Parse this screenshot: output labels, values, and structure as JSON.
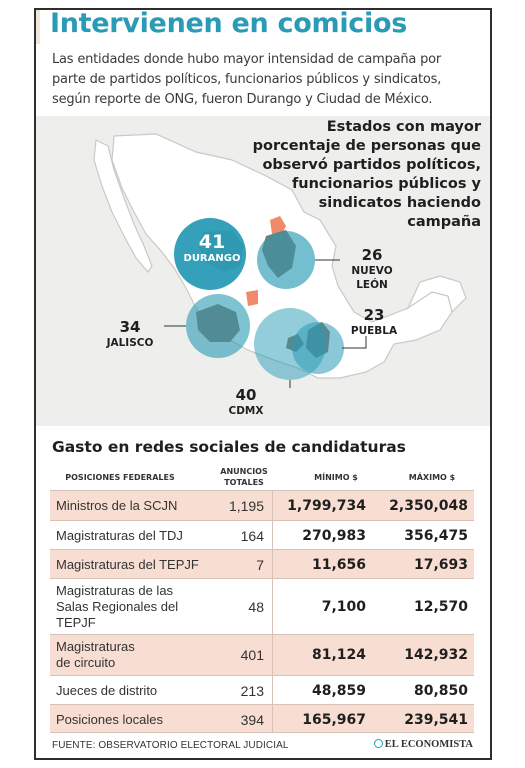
{
  "header": {
    "title": "Intervienen en comicios",
    "intro": "Las entidades donde hubo mayor intensidad de campaña por parte de partidos políticos, funcionarios públicos y sindicatos, según reporte de ONG, fueron Durango y Ciudad de México."
  },
  "map": {
    "legend_title": "Estados con mayor porcentaje de personas que observó partidos políticos, funcionarios públicos y sindicatos haciendo campaña",
    "states": {
      "durango": {
        "value": "41",
        "name": "DURANGO"
      },
      "nuevo_leon": {
        "value": "26",
        "name": "NUEVO LEÓN"
      },
      "jalisco": {
        "value": "34",
        "name": "JALISCO"
      },
      "puebla": {
        "value": "23",
        "name": "PUEBLA"
      },
      "cdmx": {
        "value": "40",
        "name": "CDMX"
      }
    },
    "colors": {
      "circle": "#2a9bb6",
      "state_fill": "#8a7466",
      "highlight": "#f08a6a",
      "land": "#ffffff",
      "sea": "#eeeeec"
    }
  },
  "table": {
    "title": "Gasto en redes sociales de candidaturas",
    "headers": {
      "position": "POSICIONES FEDERALES",
      "count": "ANUNCIOS TOTALES",
      "min": "MÍNIMO $",
      "max": "MÁXIMO $"
    },
    "rows": [
      {
        "position": "Ministros de la SCJN",
        "count": "1,195",
        "min": "1,799,734",
        "max": "2,350,048"
      },
      {
        "position": "Magistraturas del TDJ",
        "count": "164",
        "min": "270,983",
        "max": "356,475"
      },
      {
        "position": "Magistraturas del TEPJF",
        "count": "7",
        "min": "11,656",
        "max": "17,693"
      },
      {
        "position": "Magistraturas de las Salas Regionales del TEPJF",
        "count": "48",
        "min": "7,100",
        "max": "12,570"
      },
      {
        "position": "Magistraturas de circuito",
        "count": "401",
        "min": "81,124",
        "max": "142,932"
      },
      {
        "position": "Jueces de distrito",
        "count": "213",
        "min": "48,859",
        "max": "80,850"
      },
      {
        "position": "Posiciones locales",
        "count": "394",
        "min": "165,967",
        "max": "239,541"
      }
    ]
  },
  "footer": {
    "source": "FUENTE: OBSERVATORIO ELECTORAL JUDICIAL",
    "brand": "EL ECONOMISTA"
  }
}
